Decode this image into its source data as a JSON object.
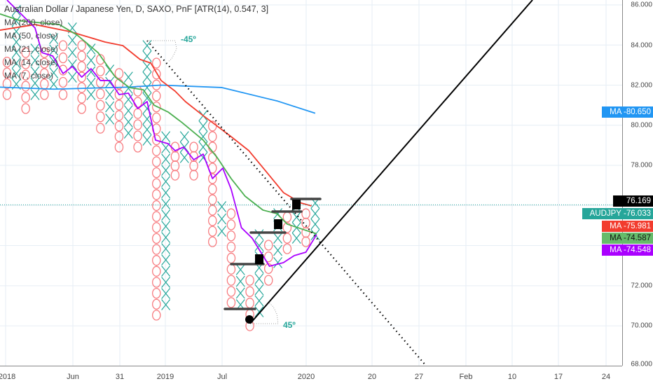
{
  "legend": {
    "title": "Australian Dollar / Japanese Yen, D, SAXO, PnF [ATR(14), 0.547, 3]",
    "indicators": [
      "MA (200, close)",
      "MA (50, close)",
      "MA (21, close)",
      "MA (14, close)",
      "MA (7, close)"
    ]
  },
  "colors": {
    "x": "#26a69a",
    "o": "#f77c80",
    "ma200": "#2196f3",
    "ma50": "#f23c2e",
    "ma21": "#4caf50",
    "ma7": "#aa00ff",
    "last": "#26a69a"
  },
  "price_axis": {
    "ticks": [
      "86.000",
      "84.000",
      "82.000",
      "80.000",
      "78.000",
      "72.000",
      "70.000",
      "68.000"
    ]
  },
  "tags": [
    {
      "name": "",
      "value": "76.169",
      "bg": "#000000",
      "fg": "#ffffff",
      "price": 76.169
    },
    {
      "name": "AUDJPY",
      "value": "76.033",
      "bg": "#26a69a",
      "fg": "#ffffff",
      "price": 76.033
    },
    {
      "name": "MA",
      "value": "75.981",
      "bg": "#f23c2e",
      "fg": "#ffffff",
      "price": 75.981
    },
    {
      "name": "MA",
      "value": "74.587",
      "bg": "#66bb6a",
      "fg": "#111111",
      "price": 74.587
    },
    {
      "name": "MA",
      "value": "74.548",
      "bg": "#aa00ff",
      "fg": "#ffffff",
      "price": 74.548
    },
    {
      "name": "MA",
      "value": "80.650",
      "bg": "#2196f3",
      "fg": "#ffffff",
      "price": 80.65
    }
  ],
  "time_axis": {
    "labels": [
      "2018",
      "Jun",
      "31",
      "2019",
      "Jul",
      "2020",
      "20",
      "27",
      "Feb",
      "10",
      "17",
      "24"
    ]
  },
  "annotations": {
    "angle_down": "-45º",
    "angle_up": "45º"
  },
  "chart_data": {
    "type": "point-and-figure",
    "box_size": 0.547,
    "reversal": 3,
    "columns": [
      {
        "t": "O",
        "hi": 83.15,
        "lo": 81.53
      },
      {
        "t": "X",
        "hi": 85.72,
        "lo": 82.05
      },
      {
        "t": "O",
        "hi": 83.62,
        "lo": 80.83
      },
      {
        "t": "X",
        "hi": 83.8,
        "lo": 81.53
      },
      {
        "t": "O",
        "hi": 83.62,
        "lo": 81.53
      },
      {
        "t": "X",
        "hi": 84.32,
        "lo": 82.05
      },
      {
        "t": "O",
        "hi": 83.97,
        "lo": 81.53
      },
      {
        "t": "X",
        "hi": 84.85,
        "lo": 82.4
      },
      {
        "t": "O",
        "hi": 83.97,
        "lo": 80.83
      },
      {
        "t": "X",
        "hi": 83.8,
        "lo": 81.53
      },
      {
        "t": "O",
        "hi": 83.28,
        "lo": 79.85
      },
      {
        "t": "X",
        "hi": 82.75,
        "lo": 80.31
      },
      {
        "t": "O",
        "hi": 82.58,
        "lo": 78.91
      },
      {
        "t": "X",
        "hi": 82.4,
        "lo": 79.61
      },
      {
        "t": "O",
        "hi": 81.7,
        "lo": 78.91
      },
      {
        "t": "X",
        "hi": 83.97,
        "lo": 79.26
      },
      {
        "t": "O",
        "hi": 83.1,
        "lo": 70.53
      },
      {
        "t": "X",
        "hi": 79.43,
        "lo": 71.05
      },
      {
        "t": "O",
        "hi": 78.91,
        "lo": 77.51
      },
      {
        "t": "X",
        "hi": 79.43,
        "lo": 78.39
      },
      {
        "t": "O",
        "hi": 78.91,
        "lo": 77.51
      },
      {
        "t": "X",
        "hi": 80.48,
        "lo": 78.39
      },
      {
        "t": "O",
        "hi": 79.96,
        "lo": 74.19
      },
      {
        "t": "X",
        "hi": 75.94,
        "lo": 74.72
      },
      {
        "t": "O",
        "hi": 75.59,
        "lo": 71.16
      },
      {
        "t": "X",
        "hi": 72.8,
        "lo": 71.05
      },
      {
        "t": "O",
        "hi": 72.27,
        "lo": 70.0
      },
      {
        "t": "X",
        "hi": 74.54,
        "lo": 70.7
      },
      {
        "t": "O",
        "hi": 74.02,
        "lo": 72.27
      },
      {
        "t": "X",
        "hi": 75.59,
        "lo": 73.15
      },
      {
        "t": "O",
        "hi": 75.42,
        "lo": 73.84
      },
      {
        "t": "X",
        "hi": 75.94,
        "lo": 74.37
      },
      {
        "t": "O",
        "hi": 75.59,
        "lo": 74.19
      },
      {
        "t": "X",
        "hi": 76.12,
        "lo": 74.54
      }
    ],
    "moving_averages": [
      {
        "name": "MA 200",
        "color": "ma200",
        "points": [
          [
            -0.75,
            81.9
          ],
          [
            5,
            81.8
          ],
          [
            13,
            81.9
          ],
          [
            16.5,
            82.0
          ],
          [
            23,
            81.88
          ],
          [
            29,
            81.2
          ],
          [
            33,
            80.6
          ]
        ]
      },
      {
        "name": "MA 50",
        "color": "ma50",
        "points": [
          [
            -0.75,
            84.74
          ],
          [
            3,
            85.02
          ],
          [
            6.75,
            84.67
          ],
          [
            10.5,
            84.15
          ],
          [
            12.4,
            83.97
          ],
          [
            14.25,
            83.28
          ],
          [
            15.4,
            83.1
          ],
          [
            16.5,
            82.23
          ],
          [
            18,
            81.7
          ],
          [
            19.1,
            81.18
          ],
          [
            21,
            80.48
          ],
          [
            22.5,
            79.96
          ],
          [
            24,
            79.43
          ],
          [
            25.9,
            78.73
          ],
          [
            27.75,
            77.69
          ],
          [
            29.6,
            76.64
          ],
          [
            31.5,
            76.12
          ],
          [
            32.6,
            75.98
          ]
        ]
      },
      {
        "name": "MA 21",
        "color": "ma21",
        "points": [
          [
            -0.75,
            85.55
          ],
          [
            1.5,
            85.2
          ],
          [
            5.6,
            85.02
          ],
          [
            7.5,
            84.5
          ],
          [
            9.75,
            83.62
          ],
          [
            11.6,
            82.4
          ],
          [
            13.1,
            81.88
          ],
          [
            14.6,
            81.77
          ],
          [
            15.75,
            81.0
          ],
          [
            17.25,
            80.66
          ],
          [
            18.75,
            80.13
          ],
          [
            21,
            79.26
          ],
          [
            22.5,
            78.39
          ],
          [
            24,
            77.34
          ],
          [
            25.5,
            76.46
          ],
          [
            27.4,
            75.77
          ],
          [
            28.9,
            75.59
          ],
          [
            30,
            75.07
          ],
          [
            32.25,
            74.72
          ],
          [
            33.15,
            74.59
          ]
        ]
      },
      {
        "name": "MA 7",
        "color": "ma7",
        "points": [
          [
            0,
            86.24
          ],
          [
            1.5,
            85.55
          ],
          [
            3,
            84.85
          ],
          [
            3.75,
            83.62
          ],
          [
            4.9,
            83.45
          ],
          [
            6,
            82.58
          ],
          [
            7,
            82.93
          ],
          [
            8,
            82.4
          ],
          [
            9,
            82.82
          ],
          [
            10,
            82.23
          ],
          [
            11,
            82.23
          ],
          [
            12,
            81.53
          ],
          [
            13,
            81.6
          ],
          [
            14,
            80.83
          ],
          [
            15,
            81.18
          ],
          [
            15.9,
            79.26
          ],
          [
            17.25,
            79.08
          ],
          [
            18,
            78.73
          ],
          [
            18.9,
            78.91
          ],
          [
            20,
            78.28
          ],
          [
            21,
            78.56
          ],
          [
            22,
            77.34
          ],
          [
            23.1,
            77.86
          ],
          [
            24,
            76.81
          ],
          [
            25.1,
            74.89
          ],
          [
            26.25,
            74.37
          ],
          [
            28.1,
            72.97
          ],
          [
            29.6,
            73.15
          ],
          [
            30.75,
            73.5
          ],
          [
            32,
            73.67
          ],
          [
            33.15,
            74.55
          ]
        ]
      }
    ],
    "last_price": 76.033,
    "price_range": [
      68,
      86.2
    ]
  }
}
